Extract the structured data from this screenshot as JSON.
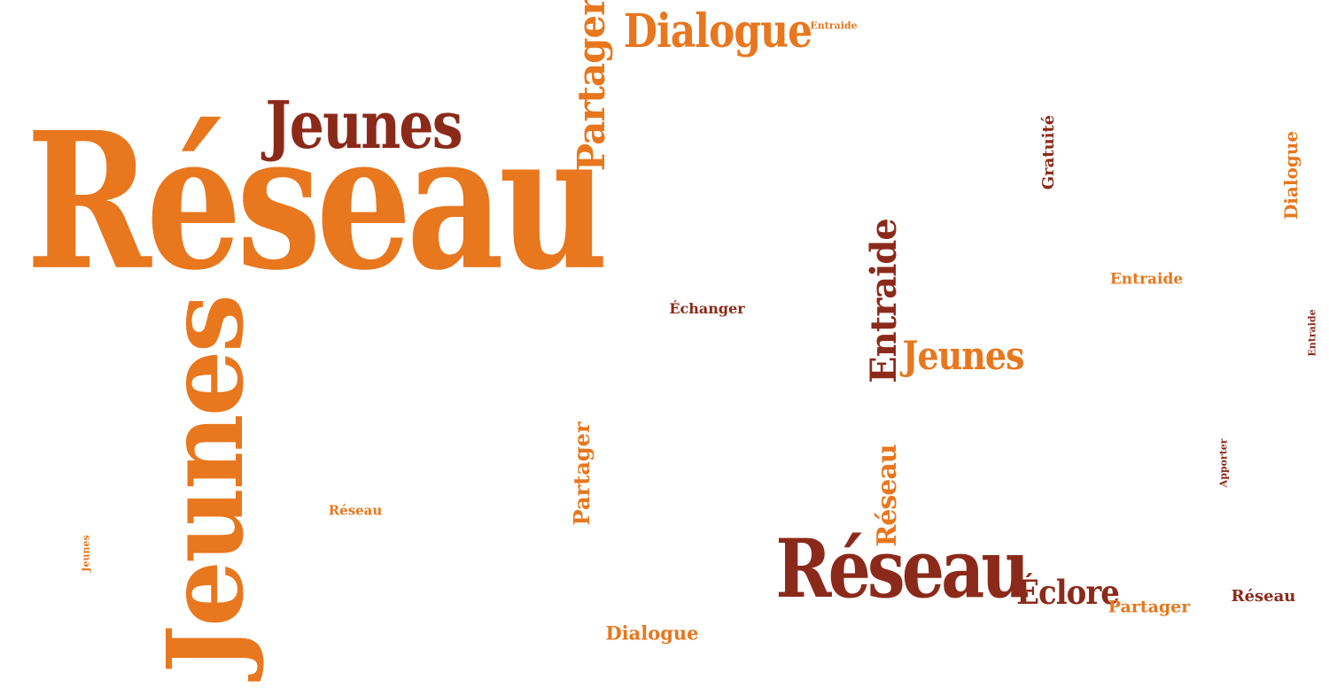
{
  "colors": {
    "orange": "#e8771e",
    "brown": "#8b2a1a",
    "background": "#ffffff"
  },
  "words": [
    "Réseau",
    "Jeunes",
    "Jeunes",
    "Partager",
    "Dialogue",
    "Entraide",
    "Gratuité",
    "Dialogue",
    "Entraide",
    "Échanger",
    "Entraide",
    "Jeunes",
    "Entraide",
    "Réseau",
    "Partager",
    "Apporter",
    "Réseau",
    "Jeunes",
    "Réseau",
    "Éclore",
    "Partager",
    "Réseau",
    "Dialogue"
  ]
}
